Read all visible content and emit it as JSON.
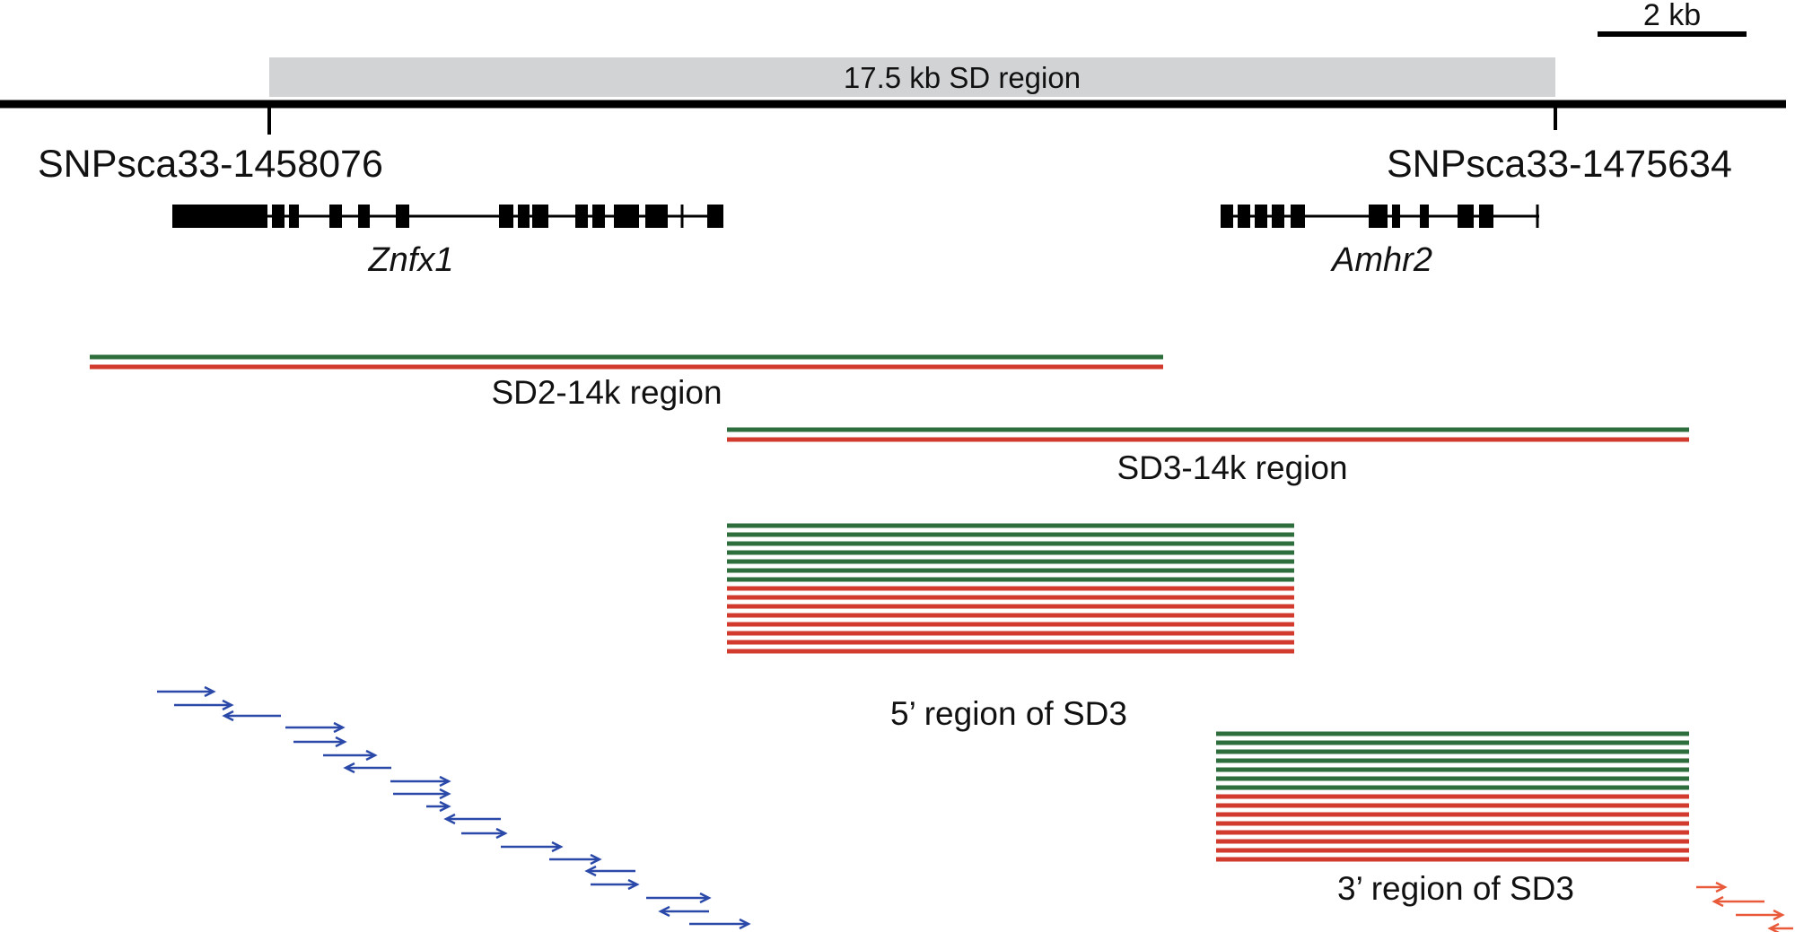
{
  "scale_bar": {
    "label": "2 kb"
  },
  "sd_region": {
    "label": "17.5 kb SD region"
  },
  "markers": {
    "left": "SNPsca33-1458076",
    "right": "SNPsca33-1475634"
  },
  "genes": {
    "left": "Znfx1",
    "right": "Amhr2"
  },
  "regions": {
    "sd2_14k": "SD2-14k region",
    "sd3_14k": "SD3-14k region",
    "sd3_5prime": "5’ region of SD3",
    "sd3_3prime": "3’ region of SD3"
  },
  "colors": {
    "line": "#000000",
    "sd_fill": "#d2d3d5",
    "green": "#2e6e3c",
    "red": "#d23a2e",
    "blue_primer": "#2a49a8",
    "orange_primer": "#e85a3a"
  }
}
